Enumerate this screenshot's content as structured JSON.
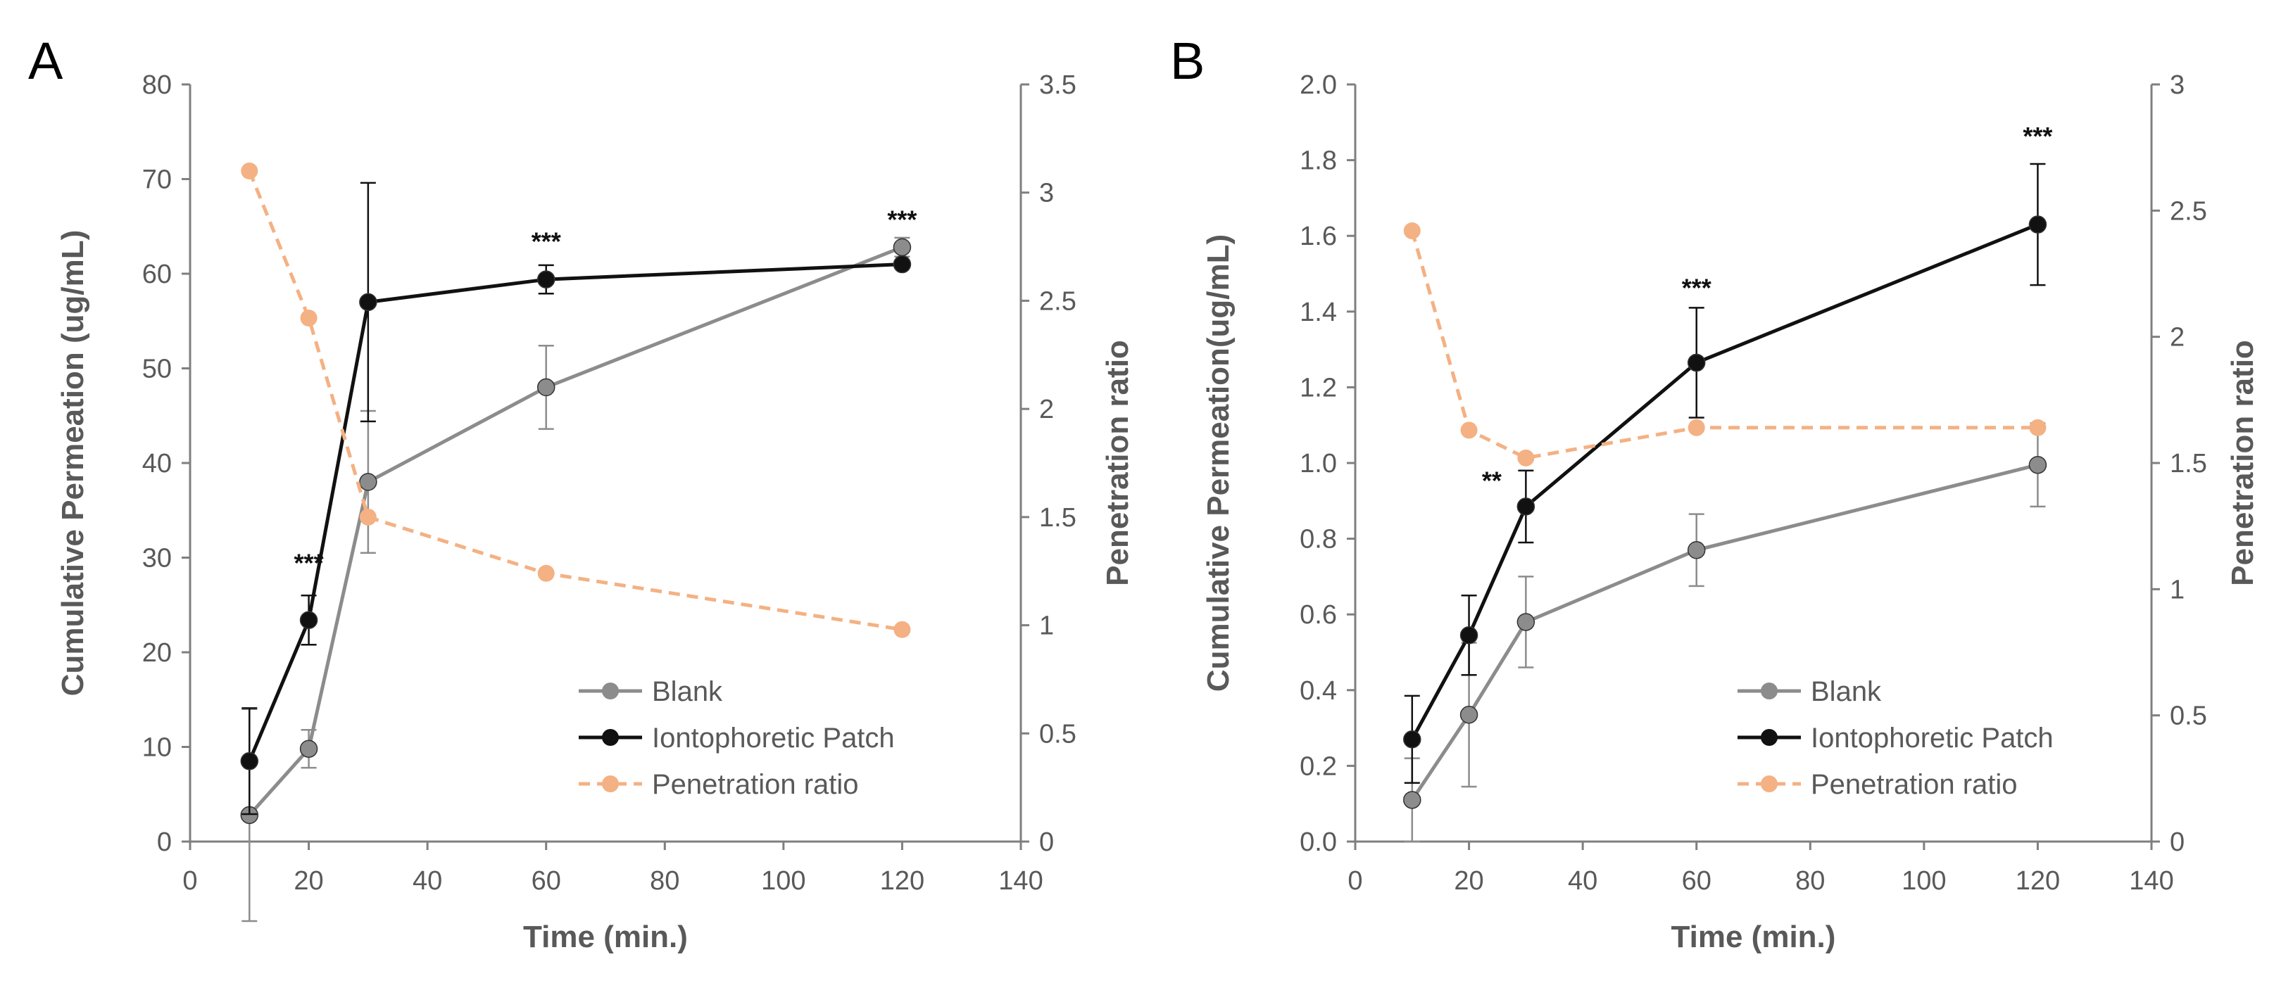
{
  "chart_data": [
    {
      "panel_label": "A",
      "type": "line",
      "xlabel": "Time (min.)",
      "ylabel": "Cumulative Permeation (ug/mL)",
      "y2label": "Penetration ratio",
      "xlim": [
        0,
        140
      ],
      "xticks": [
        0,
        20,
        40,
        60,
        80,
        100,
        120,
        140
      ],
      "xtick_labels": [
        "0",
        "20",
        "40",
        "60",
        "80",
        "100",
        "120",
        "140"
      ],
      "ylim": [
        0,
        80
      ],
      "yticks": [
        0,
        10,
        20,
        30,
        40,
        50,
        60,
        70,
        80
      ],
      "ytick_labels": [
        "0",
        "10",
        "20",
        "30",
        "40",
        "50",
        "60",
        "70",
        "80"
      ],
      "y2lim": [
        0,
        3.5
      ],
      "y2ticks": [
        0,
        0.5,
        1,
        1.5,
        2,
        2.5,
        3,
        3.5
      ],
      "y2tick_labels": [
        "0",
        "0.5",
        "1",
        "1.5",
        "2",
        "2.5",
        "3",
        "3.5"
      ],
      "grid": false,
      "legend_position": "lower-right",
      "x": [
        10,
        20,
        30,
        60,
        120
      ],
      "series": [
        {
          "name": "Blank",
          "axis": "left",
          "color": "#8c8c8c",
          "dash": "solid",
          "values": [
            2.8,
            9.8,
            38,
            48,
            62.8
          ],
          "errors": [
            11.2,
            2.0,
            7.5,
            4.4,
            1.0
          ]
        },
        {
          "name": "Iontophoretic Patch",
          "axis": "left",
          "color": "#111111",
          "dash": "solid",
          "values": [
            8.5,
            23.4,
            57,
            59.4,
            61
          ],
          "errors": [
            5.6,
            2.6,
            12.6,
            1.5,
            0
          ]
        },
        {
          "name": "Penetration ratio",
          "axis": "right",
          "color": "#f4b183",
          "dash": "dashed",
          "values": [
            3.1,
            2.42,
            1.5,
            1.24,
            0.98
          ],
          "errors": [
            0,
            0,
            0,
            0,
            0
          ]
        }
      ],
      "annotations": [
        {
          "text": "***",
          "x": 20,
          "y": 28.5
        },
        {
          "text": "***",
          "x": 60,
          "y": 62.5
        },
        {
          "text": "***",
          "x": 120,
          "y": 64.8
        }
      ]
    },
    {
      "panel_label": "B",
      "type": "line",
      "xlabel": "Time (min.)",
      "ylabel": "Cumulative Permeation(ug/mL)",
      "y2label": "Penetration ratio",
      "xlim": [
        0,
        140
      ],
      "xticks": [
        0,
        20,
        40,
        60,
        80,
        100,
        120,
        140
      ],
      "xtick_labels": [
        "0",
        "20",
        "40",
        "60",
        "80",
        "100",
        "120",
        "140"
      ],
      "ylim": [
        0,
        2
      ],
      "yticks": [
        0,
        0.2,
        0.4,
        0.6,
        0.8,
        1.0,
        1.2,
        1.4,
        1.6,
        1.8,
        2.0
      ],
      "ytick_labels": [
        "0.0",
        "0.2",
        "0.4",
        "0.6",
        "0.8",
        "1.0",
        "1.2",
        "1.4",
        "1.6",
        "1.8",
        "2.0"
      ],
      "y2lim": [
        0,
        3
      ],
      "y2ticks": [
        0,
        0.5,
        1,
        1.5,
        2,
        2.5,
        3
      ],
      "y2tick_labels": [
        "0",
        "0.5",
        "1",
        "1.5",
        "2",
        "2.5",
        "3"
      ],
      "grid": false,
      "legend_position": "lower-right",
      "x": [
        10,
        20,
        30,
        60,
        120
      ],
      "series": [
        {
          "name": "Blank",
          "axis": "left",
          "color": "#8c8c8c",
          "dash": "solid",
          "values": [
            0.11,
            0.335,
            0.58,
            0.77,
            0.995
          ],
          "errors": [
            0.11,
            0.19,
            0.12,
            0.095,
            0.11
          ]
        },
        {
          "name": "Iontophoretic Patch",
          "axis": "left",
          "color": "#111111",
          "dash": "solid",
          "values": [
            0.27,
            0.545,
            0.885,
            1.265,
            1.63
          ],
          "errors": [
            0.115,
            0.105,
            0.095,
            0.145,
            0.16
          ]
        },
        {
          "name": "Penetration ratio",
          "axis": "right",
          "color": "#f4b183",
          "dash": "dashed",
          "values": [
            2.42,
            1.63,
            1.52,
            1.64,
            1.64
          ],
          "errors": [
            0,
            0,
            0,
            0,
            0
          ]
        }
      ],
      "annotations": [
        {
          "text": "**",
          "x": 24,
          "y": 0.93
        },
        {
          "text": "***",
          "x": 60,
          "y": 1.44
        },
        {
          "text": "***",
          "x": 120,
          "y": 1.84
        }
      ]
    }
  ]
}
